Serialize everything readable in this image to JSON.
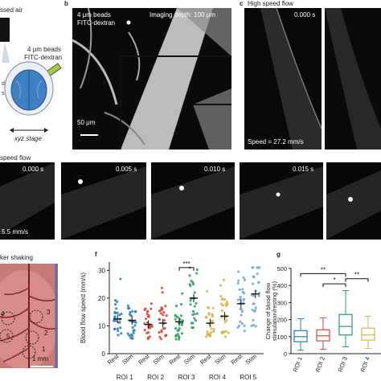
{
  "panel_a": {
    "text_top": "ssed air",
    "beads_line1": "4 μm beads",
    "beads_line2": "FITC-dextran",
    "stage": "xyz stage"
  },
  "panel_b": {
    "letter": "b",
    "beads": "4 μm beads",
    "dextran": "FITC-dextran",
    "depth": "Imaging depth: 100 μm",
    "scale": "50 μm"
  },
  "panel_c": {
    "letter": "c",
    "title": "High speed flow",
    "time": "0.000 s",
    "speed": "Speed = 27.2 mm/s"
  },
  "panel_d": {
    "title": "speed flow",
    "times": [
      "0.000 s",
      "0.005 s",
      "0.010 s",
      "0.015 s"
    ],
    "speed": "5.5 mm/s"
  },
  "panel_e": {
    "title": "ker shaking",
    "rois": [
      "1",
      "2",
      "3",
      "4",
      "5"
    ],
    "scale": "1 mm"
  },
  "panel_f": {
    "letter": "f",
    "ylabel": "Blood flow speed (mm/s)",
    "sig": "***",
    "conditions": [
      "Rest",
      "Stim"
    ]
  },
  "panel_g": {
    "letter": "g",
    "ylabel_line1": "Change of blood flow",
    "ylabel_line2": "stimulation/resting (%)",
    "sig": [
      "**",
      "*",
      "**"
    ]
  },
  "chart_data": [
    {
      "type": "scatter",
      "ylabel": "Blood flow speed (mm/s)",
      "yticks": [
        0,
        10,
        20,
        30
      ],
      "ylim": [
        0,
        33
      ],
      "categories": [
        "ROI 1",
        "ROI 2",
        "ROI 3",
        "ROI 4",
        "ROI 5"
      ],
      "conditions": [
        "Rest",
        "Stim"
      ],
      "series": [
        {
          "roi": "ROI 1",
          "color": "#2a7fb5",
          "rest_mean": 12.5,
          "stim_mean": 12.0
        },
        {
          "roi": "ROI 2",
          "color": "#d9453b",
          "rest_mean": 10.5,
          "stim_mean": 11.0
        },
        {
          "roi": "ROI 3",
          "color": "#2b9c63",
          "rest_mean": 11.5,
          "stim_mean": 20.0
        },
        {
          "roi": "ROI 4",
          "color": "#d9b24a",
          "rest_mean": 11.0,
          "stim_mean": 13.5
        },
        {
          "roi": "ROI 5",
          "color": "#6fa8d6",
          "rest_mean": 18.0,
          "stim_mean": 21.5
        }
      ],
      "annotation": "***"
    },
    {
      "type": "box",
      "ylabel": "Change of blood flow stimulation/resting (%)",
      "yticks": [
        0,
        100,
        200,
        300,
        400,
        500
      ],
      "ylim": [
        0,
        500
      ],
      "categories": [
        "ROI 1",
        "ROI 2",
        "ROI 3",
        "ROI 4"
      ],
      "boxes": [
        {
          "roi": "ROI 1",
          "color": "#2a7fb5",
          "min": 20,
          "q1": 70,
          "median": 100,
          "q3": 135,
          "max": 205
        },
        {
          "roi": "ROI 2",
          "color": "#d9453b",
          "min": 25,
          "q1": 75,
          "median": 105,
          "q3": 140,
          "max": 210
        },
        {
          "roi": "ROI 3",
          "color": "#2b9c63",
          "min": 40,
          "q1": 110,
          "median": 160,
          "q3": 230,
          "max": 370
        },
        {
          "roi": "ROI 4",
          "color": "#d9b24a",
          "min": 30,
          "q1": 80,
          "median": 110,
          "q3": 150,
          "max": 220
        }
      ],
      "annotations": [
        "**",
        "*",
        "**"
      ]
    }
  ]
}
